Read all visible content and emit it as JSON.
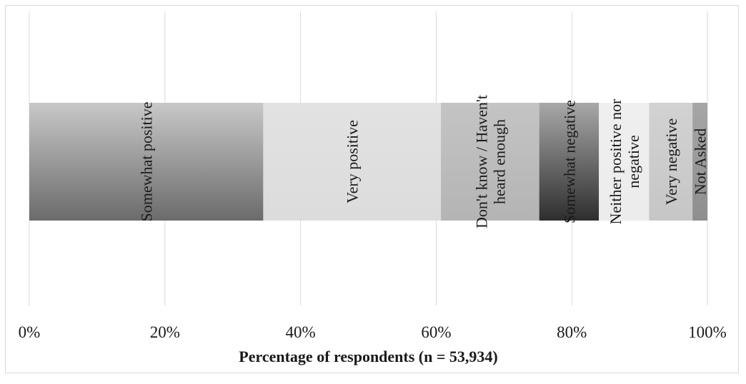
{
  "chart_data": {
    "type": "bar",
    "orientation": "horizontal-stacked",
    "xlabel": "Percentage of respondents (n =  53,934)",
    "xlim": [
      0,
      100
    ],
    "x_ticks": [
      "0%",
      "20%",
      "40%",
      "60%",
      "80%",
      "100%"
    ],
    "grid": true,
    "series": [
      {
        "name": "Somewhat positive",
        "value": 34.5,
        "label_lines": [
          "Somewhat positive"
        ]
      },
      {
        "name": "Very positive",
        "value": 26.2,
        "label_lines": [
          "Very positive"
        ]
      },
      {
        "name": "Don't know / Haven't heard enough",
        "value": 14.5,
        "label_lines": [
          "Don't know / Haven't",
          "heard enough"
        ]
      },
      {
        "name": "Somewhat negative",
        "value": 8.8,
        "label_lines": [
          "Somewhat negative"
        ]
      },
      {
        "name": "Neither positive nor negative",
        "value": 7.4,
        "label_lines": [
          "Neither positive nor",
          "negative"
        ]
      },
      {
        "name": "Very negative",
        "value": 6.4,
        "label_lines": [
          "Very negative"
        ]
      },
      {
        "name": "Not Asked",
        "value": 2.2,
        "label_lines": [
          "Not Asked"
        ]
      }
    ]
  }
}
